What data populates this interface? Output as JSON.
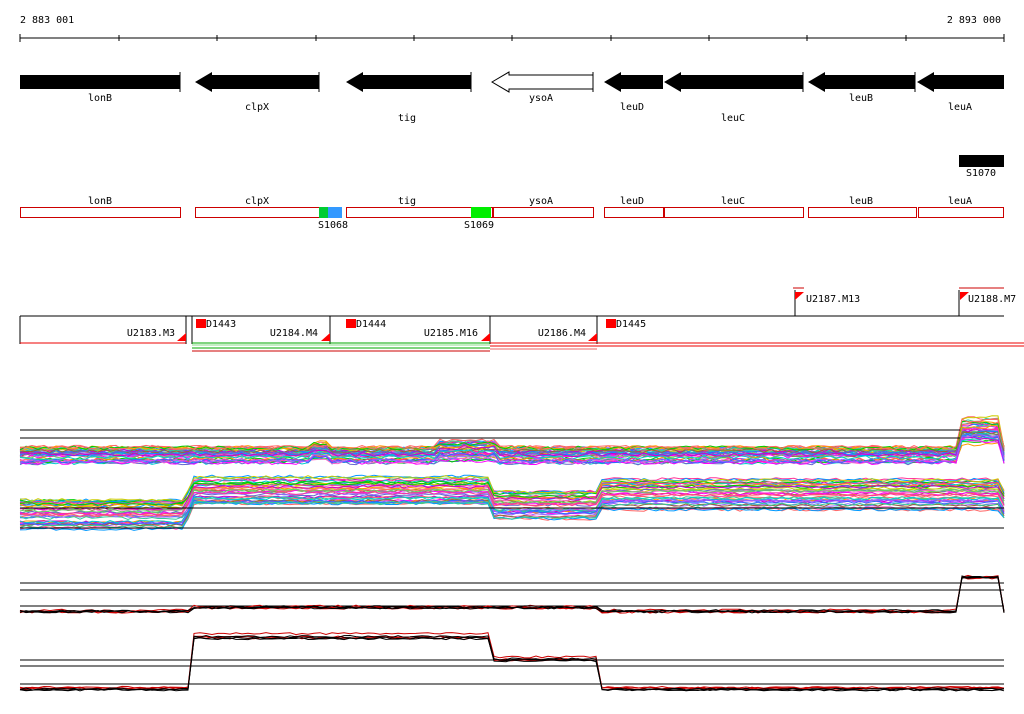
{
  "ruler": {
    "start_label": "2 883 001",
    "end_label": "2 893 000"
  },
  "genes": [
    {
      "name": "lonB",
      "strand": "+",
      "filled": true
    },
    {
      "name": "clpX",
      "strand": "-",
      "filled": true
    },
    {
      "name": "tig",
      "strand": "-",
      "filled": true
    },
    {
      "name": "ysoA",
      "strand": "-",
      "filled": false
    },
    {
      "name": "leuD",
      "strand": "-",
      "filled": true
    },
    {
      "name": "leuC",
      "strand": "-",
      "filled": true
    },
    {
      "name": "leuB",
      "strand": "-",
      "filled": true
    },
    {
      "name": "leuA",
      "strand": "-",
      "filled": true
    }
  ],
  "segment_label": "S1070",
  "annotation_boxes": [
    "lonB",
    "clpX",
    "tig",
    "ysoA",
    "leuD",
    "leuC",
    "leuB",
    "leuA"
  ],
  "sites": [
    {
      "label": "S1068",
      "colors": [
        "#00cc33",
        "#3399ff"
      ]
    },
    {
      "label": "S1069",
      "colors": [
        "#00ee00"
      ]
    }
  ],
  "transcription_units": [
    "U2183.M3",
    "U2184.M4",
    "U2185.M16",
    "U2186.M4",
    "U2187.M13",
    "U2188.M7"
  ],
  "promoters": [
    "D1443",
    "D1444",
    "D1445"
  ],
  "colors": {
    "feature": "#000000",
    "box_outline": "#cc0000",
    "promoter": "#ff0000",
    "expression_high": "#cc0000",
    "expression_green": "#00aa00"
  }
}
